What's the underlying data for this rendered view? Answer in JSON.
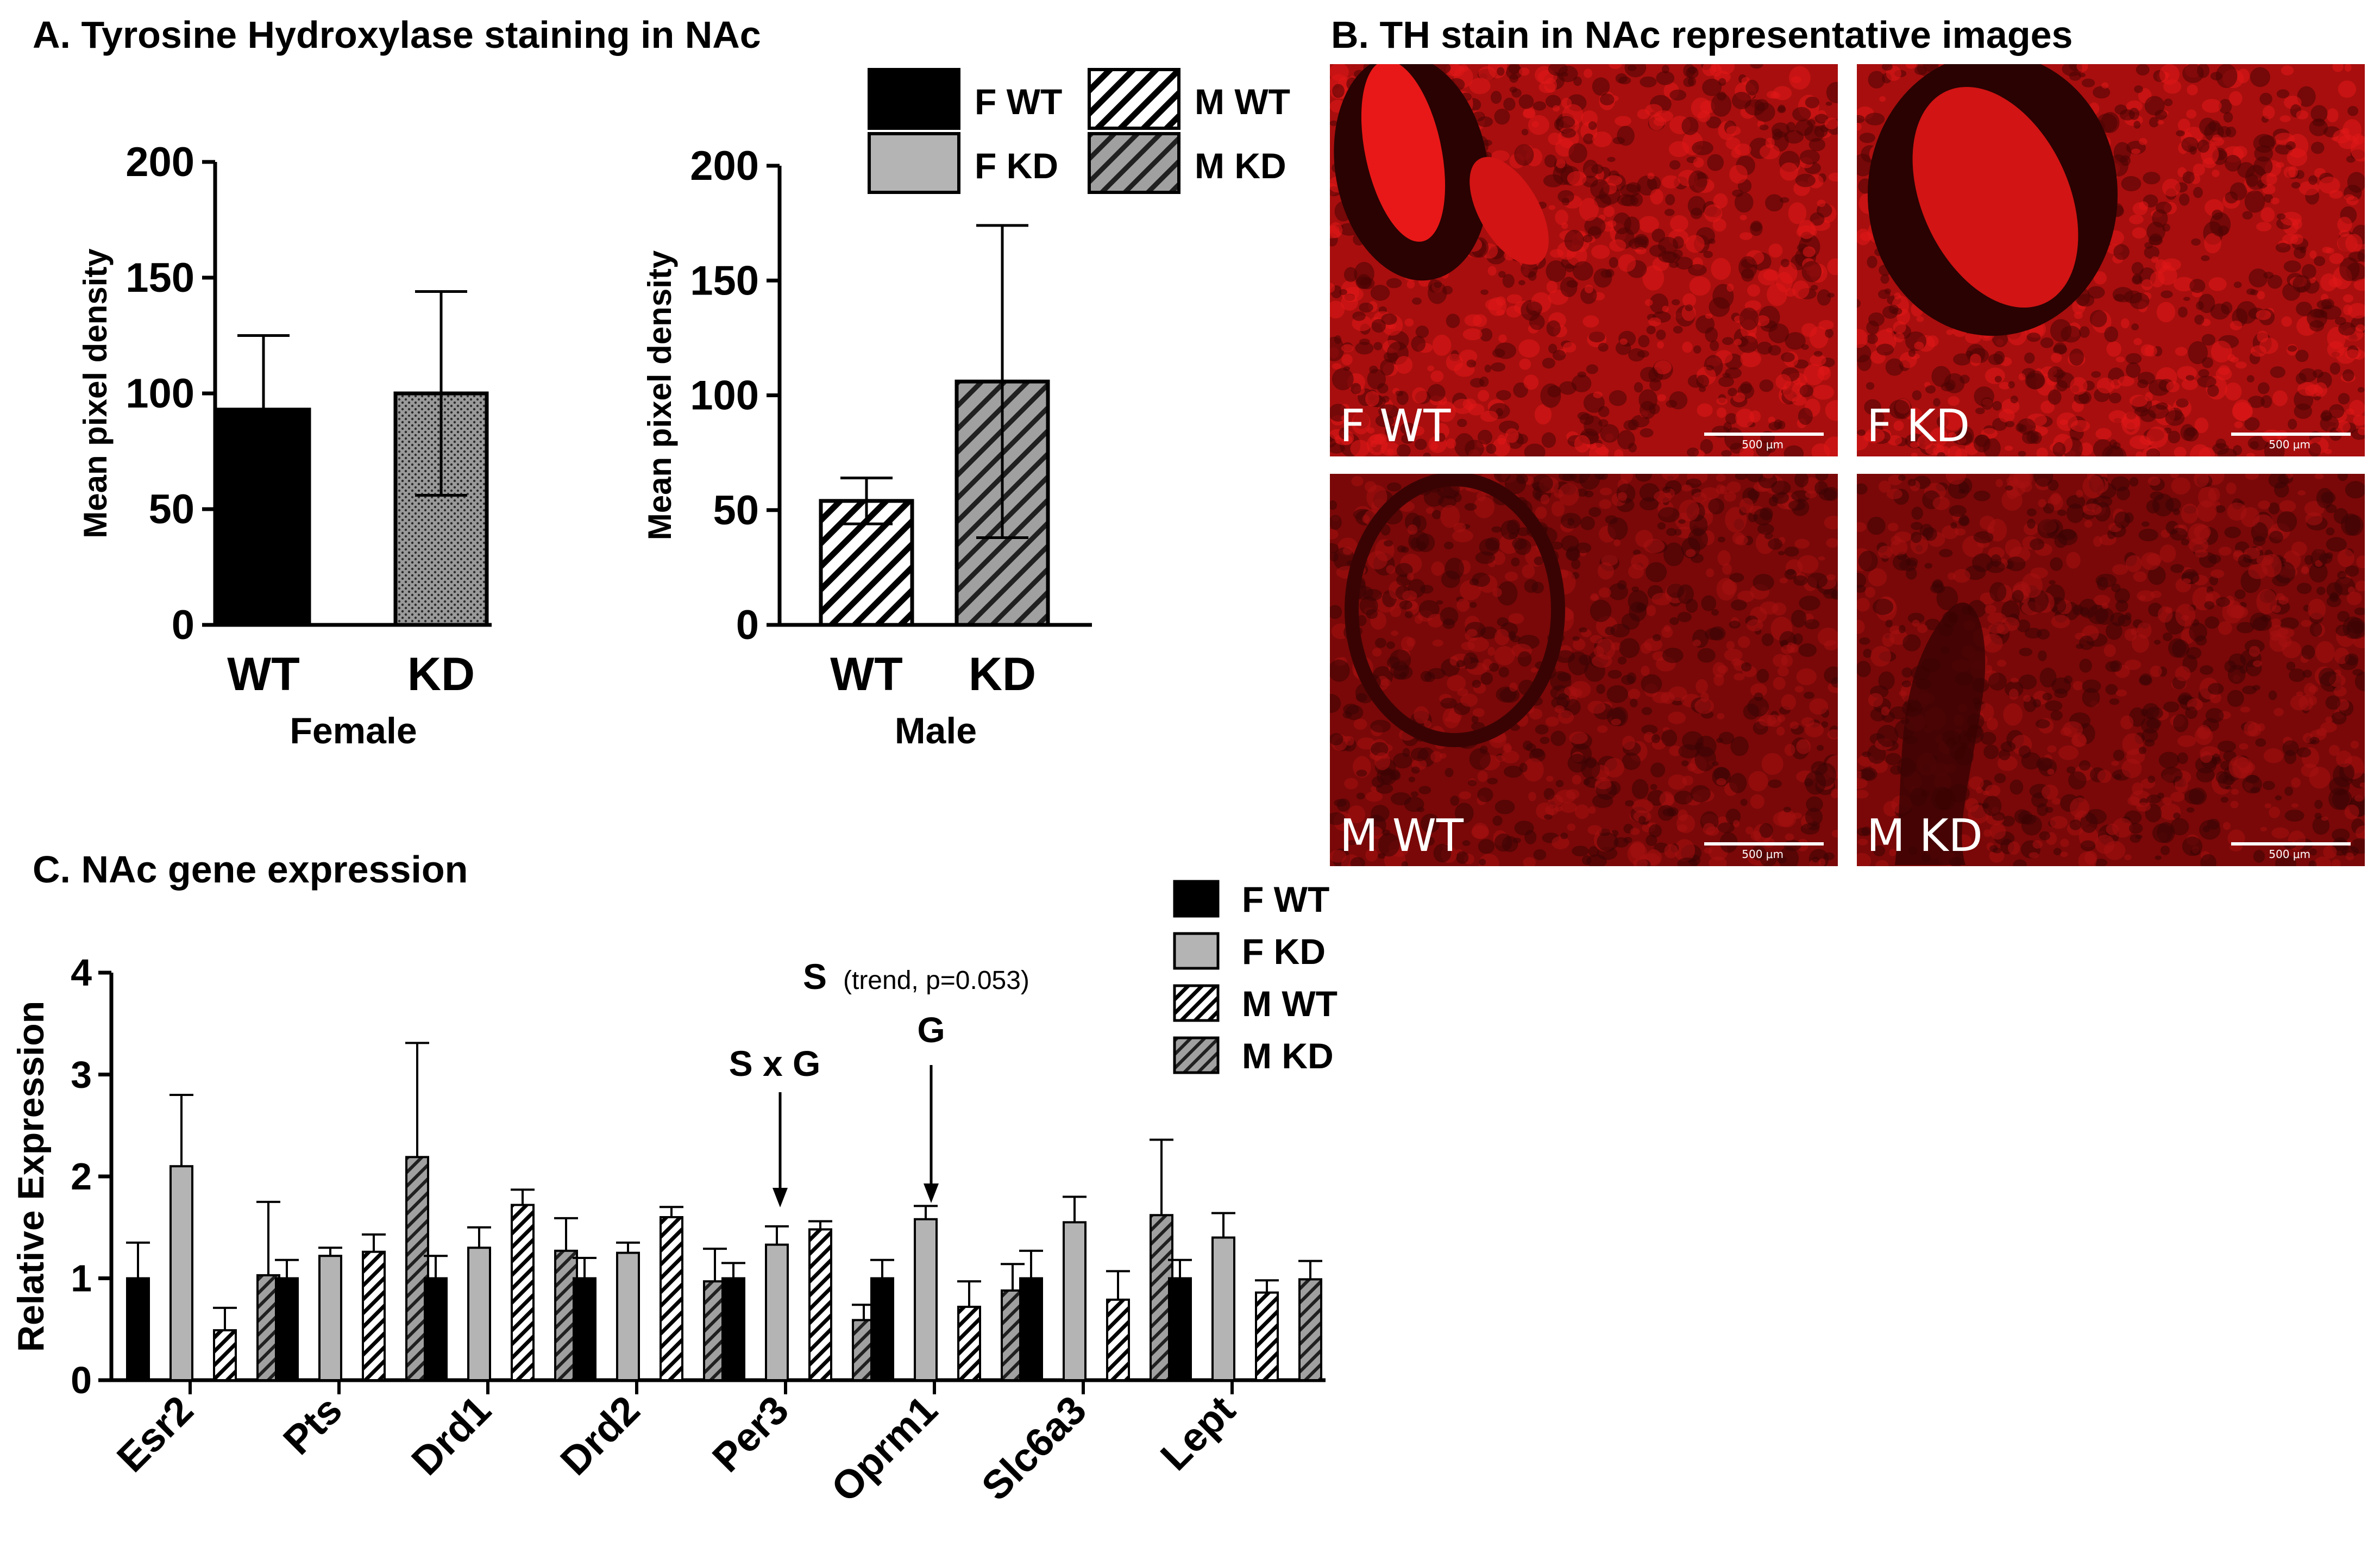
{
  "panels": {
    "a_title": "A. Tyrosine Hydroxylase staining in NAc",
    "b_title": "B. TH stain in NAc representative images",
    "c_title": "C. NAc gene expression"
  },
  "legend_top": {
    "entries": [
      {
        "label": "F WT",
        "fill": "solid-black"
      },
      {
        "label": "F KD",
        "fill": "solid-gray"
      },
      {
        "label": "M WT",
        "fill": "hatch-white"
      },
      {
        "label": "M KD",
        "fill": "hatch-gray"
      }
    ]
  },
  "micrographs": [
    {
      "label": "F WT",
      "scale_label": "500 μm",
      "style": "bright"
    },
    {
      "label": "F KD",
      "scale_label": "500 μm",
      "style": "bright"
    },
    {
      "label": "M WT",
      "scale_label": "500 μm",
      "style": "dim"
    },
    {
      "label": "M KD",
      "scale_label": "500 μm",
      "style": "dim"
    }
  ],
  "colors": {
    "f_wt": "#000000",
    "f_kd": "#b4b4b4",
    "m_wt": "#ffffff",
    "m_kd": "#a0a0a0",
    "stain_red": "#d21414",
    "stain_dark": "#3a0404"
  },
  "chart_data": [
    {
      "type": "bar",
      "panel": "A-female",
      "categories": [
        "WT",
        "KD"
      ],
      "values": [
        93,
        100
      ],
      "errors": [
        32,
        44
      ],
      "fills": [
        "solid-black",
        "dotted-gray"
      ],
      "xlabel": "Female",
      "ylabel": "Mean pixel density",
      "ylim": [
        0,
        200
      ],
      "yticks": [
        0,
        50,
        100,
        150,
        200
      ],
      "grid": false
    },
    {
      "type": "bar",
      "panel": "A-male",
      "categories": [
        "WT",
        "KD"
      ],
      "values": [
        54,
        106
      ],
      "errors": [
        10,
        68
      ],
      "fills": [
        "hatch-white",
        "hatch-gray"
      ],
      "xlabel": "Male",
      "ylabel": "Mean pixel density",
      "ylim": [
        0,
        200
      ],
      "yticks": [
        0,
        50,
        100,
        150,
        200
      ],
      "grid": false
    },
    {
      "type": "bar",
      "panel": "C",
      "categories": [
        "Esr2",
        "Pts",
        "Drd1",
        "Drd2",
        "Per3",
        "Oprm1",
        "Slc6a3",
        "Lept"
      ],
      "series": [
        {
          "name": "F WT",
          "fill": "solid-black",
          "values": [
            1.0,
            1.0,
            1.0,
            1.0,
            1.0,
            1.0,
            1.0,
            1.0
          ],
          "errors": [
            0.35,
            0.18,
            0.22,
            0.2,
            0.15,
            0.18,
            0.27,
            0.18
          ]
        },
        {
          "name": "F KD",
          "fill": "solid-gray",
          "values": [
            2.1,
            1.22,
            1.3,
            1.25,
            1.33,
            1.58,
            1.55,
            1.4
          ],
          "errors": [
            0.7,
            0.08,
            0.2,
            0.1,
            0.18,
            0.13,
            0.25,
            0.24
          ]
        },
        {
          "name": "M WT",
          "fill": "hatch-white",
          "values": [
            0.49,
            1.26,
            1.72,
            1.6,
            1.48,
            0.72,
            0.79,
            0.86
          ],
          "errors": [
            0.22,
            0.17,
            0.15,
            0.1,
            0.08,
            0.25,
            0.28,
            0.12
          ]
        },
        {
          "name": "M KD",
          "fill": "hatch-gray",
          "values": [
            1.03,
            2.19,
            1.27,
            0.97,
            0.59,
            0.88,
            1.62,
            0.99
          ],
          "errors": [
            0.72,
            1.12,
            0.32,
            0.32,
            0.15,
            0.26,
            0.74,
            0.18
          ]
        }
      ],
      "ylabel": "Relative Expression",
      "ylim": [
        0,
        4
      ],
      "yticks": [
        0,
        1,
        2,
        3,
        4
      ],
      "grid": false,
      "legend_position": "top-right",
      "annotations": [
        {
          "text": "S x G",
          "category": "Per3",
          "arrow": true
        },
        {
          "text": "G",
          "category": "Oprm1",
          "arrow": true
        },
        {
          "text": "S",
          "category": "Oprm1",
          "note": "(trend, p=0.053)"
        }
      ]
    }
  ]
}
